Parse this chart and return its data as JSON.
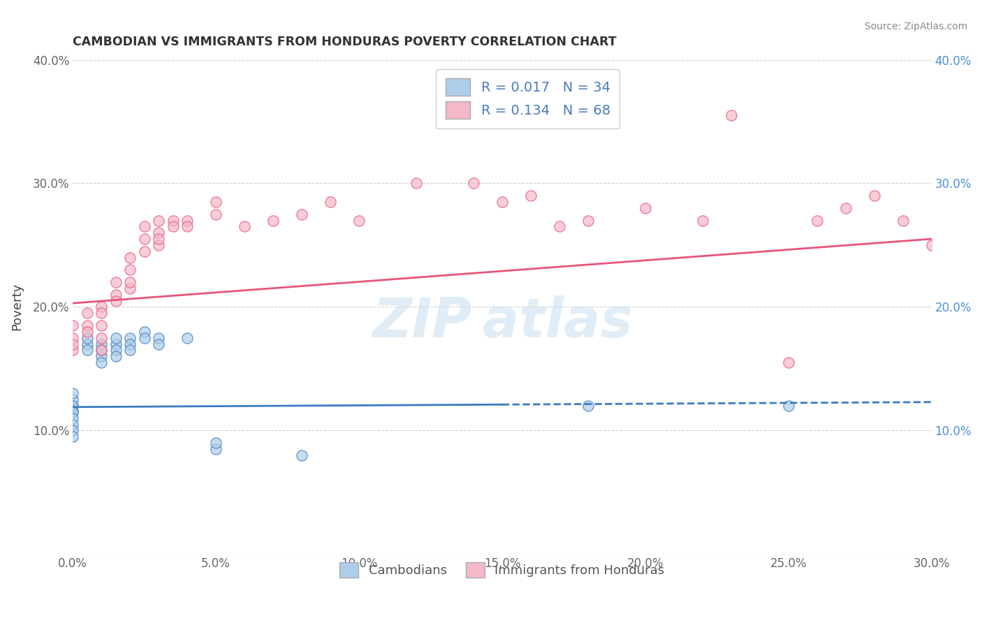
{
  "title": "CAMBODIAN VS IMMIGRANTS FROM HONDURAS POVERTY CORRELATION CHART",
  "source": "Source: ZipAtlas.com",
  "ylabel": "Poverty",
  "x_min": 0.0,
  "x_max": 0.3,
  "y_min": 0.0,
  "y_max": 0.4,
  "x_ticks": [
    0.0,
    0.05,
    0.1,
    0.15,
    0.2,
    0.25,
    0.3
  ],
  "x_tick_labels": [
    "0.0%",
    "5.0%",
    "10.0%",
    "15.0%",
    "20.0%",
    "25.0%",
    "30.0%"
  ],
  "y_ticks": [
    0.0,
    0.1,
    0.2,
    0.3,
    0.4
  ],
  "y_tick_labels": [
    "",
    "10.0%",
    "20.0%",
    "30.0%",
    "40.0%"
  ],
  "color_blue": "#aecde8",
  "color_pink": "#f4b8c8",
  "color_blue_line": "#3a7bbf",
  "color_pink_line": "#e8547a",
  "cambodians_x": [
    0.0,
    0.0,
    0.0,
    0.0,
    0.0,
    0.0,
    0.0,
    0.0,
    0.0,
    0.0,
    0.005,
    0.005,
    0.005,
    0.01,
    0.01,
    0.01,
    0.01,
    0.015,
    0.015,
    0.015,
    0.015,
    0.02,
    0.02,
    0.02,
    0.025,
    0.025,
    0.03,
    0.03,
    0.04,
    0.05,
    0.05,
    0.08,
    0.18,
    0.25
  ],
  "cambodians_y": [
    0.12,
    0.115,
    0.125,
    0.13,
    0.12,
    0.115,
    0.11,
    0.105,
    0.1,
    0.095,
    0.17,
    0.165,
    0.175,
    0.16,
    0.155,
    0.17,
    0.165,
    0.17,
    0.175,
    0.165,
    0.16,
    0.175,
    0.17,
    0.165,
    0.18,
    0.175,
    0.175,
    0.17,
    0.175,
    0.085,
    0.09,
    0.08,
    0.12,
    0.12
  ],
  "honduras_x": [
    0.0,
    0.0,
    0.0,
    0.0,
    0.005,
    0.005,
    0.005,
    0.01,
    0.01,
    0.01,
    0.01,
    0.01,
    0.015,
    0.015,
    0.015,
    0.02,
    0.02,
    0.02,
    0.02,
    0.025,
    0.025,
    0.025,
    0.03,
    0.03,
    0.03,
    0.03,
    0.035,
    0.035,
    0.04,
    0.04,
    0.05,
    0.05,
    0.06,
    0.07,
    0.08,
    0.09,
    0.1,
    0.12,
    0.14,
    0.15,
    0.16,
    0.17,
    0.18,
    0.2,
    0.22,
    0.23,
    0.25,
    0.26,
    0.27,
    0.28,
    0.29,
    0.3
  ],
  "honduras_y": [
    0.165,
    0.175,
    0.185,
    0.17,
    0.195,
    0.185,
    0.18,
    0.2,
    0.195,
    0.185,
    0.175,
    0.165,
    0.21,
    0.22,
    0.205,
    0.215,
    0.22,
    0.23,
    0.24,
    0.245,
    0.255,
    0.265,
    0.25,
    0.26,
    0.27,
    0.255,
    0.27,
    0.265,
    0.27,
    0.265,
    0.285,
    0.275,
    0.265,
    0.27,
    0.275,
    0.285,
    0.27,
    0.3,
    0.3,
    0.285,
    0.29,
    0.265,
    0.27,
    0.28,
    0.27,
    0.355,
    0.155,
    0.27,
    0.28,
    0.29,
    0.27,
    0.25
  ],
  "blue_trendline_x": [
    0.0,
    0.3
  ],
  "blue_trendline_y": [
    0.119,
    0.123
  ],
  "pink_trendline_x": [
    0.0,
    0.3
  ],
  "pink_trendline_y": [
    0.203,
    0.255
  ]
}
